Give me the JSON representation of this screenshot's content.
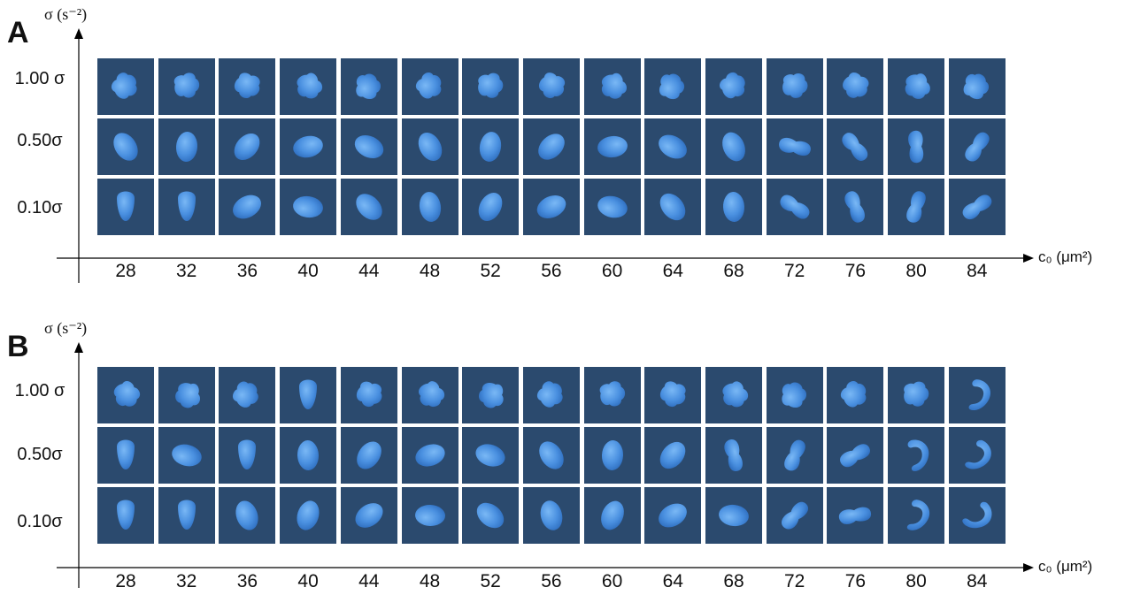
{
  "panels": [
    {
      "id": "A",
      "letter": "A",
      "y_axis_title": "σ (s⁻²)",
      "x_axis_title": "c₀ (μm²)",
      "rows": [
        "1.00 σ",
        "0.50σ",
        "0.10σ"
      ],
      "columns": [
        "28",
        "32",
        "36",
        "40",
        "44",
        "48",
        "52",
        "56",
        "60",
        "64",
        "68",
        "72",
        "76",
        "80",
        "84"
      ],
      "shapes": [
        [
          "blob",
          "blob",
          "blob",
          "blob",
          "blob",
          "blob",
          "blob",
          "blob",
          "blob",
          "blob",
          "blob",
          "blob",
          "blob",
          "blob",
          "blob"
        ],
        [
          "oval",
          "oval",
          "oval",
          "oval",
          "oval",
          "oval",
          "oval",
          "oval",
          "oval",
          "oval",
          "oval",
          "bean",
          "bean",
          "bean",
          "bean"
        ],
        [
          "drop",
          "drop",
          "oval",
          "oval",
          "oval",
          "oval",
          "oval",
          "oval",
          "oval",
          "oval",
          "oval",
          "bean",
          "bean",
          "bean",
          "bean"
        ]
      ]
    },
    {
      "id": "B",
      "letter": "B",
      "y_axis_title": "σ (s⁻²)",
      "x_axis_title": "c₀ (μm²)",
      "rows": [
        "1.00 σ",
        "0.50σ",
        "0.10σ"
      ],
      "columns": [
        "28",
        "32",
        "36",
        "40",
        "44",
        "48",
        "52",
        "56",
        "60",
        "64",
        "68",
        "72",
        "76",
        "80",
        "84"
      ],
      "shapes": [
        [
          "blob",
          "blob",
          "blob",
          "drop",
          "blob",
          "blob",
          "blob",
          "blob",
          "blob",
          "blob",
          "blob",
          "blob",
          "blob",
          "blob",
          "hook"
        ],
        [
          "drop",
          "oval",
          "drop",
          "oval",
          "oval",
          "oval",
          "oval",
          "oval",
          "oval",
          "oval",
          "bean",
          "bean",
          "bean",
          "hook",
          "hook"
        ],
        [
          "drop",
          "drop",
          "oval",
          "oval",
          "oval",
          "oval",
          "oval",
          "oval",
          "oval",
          "oval",
          "oval",
          "bean",
          "bean",
          "hook",
          "hook"
        ]
      ]
    }
  ],
  "colors": {
    "cell_background": "#2b4a6e",
    "shape_light": "#7ab8f5",
    "shape_mid": "#4a90e0",
    "shape_dark": "#2f6fc0",
    "axis": "#000000"
  }
}
